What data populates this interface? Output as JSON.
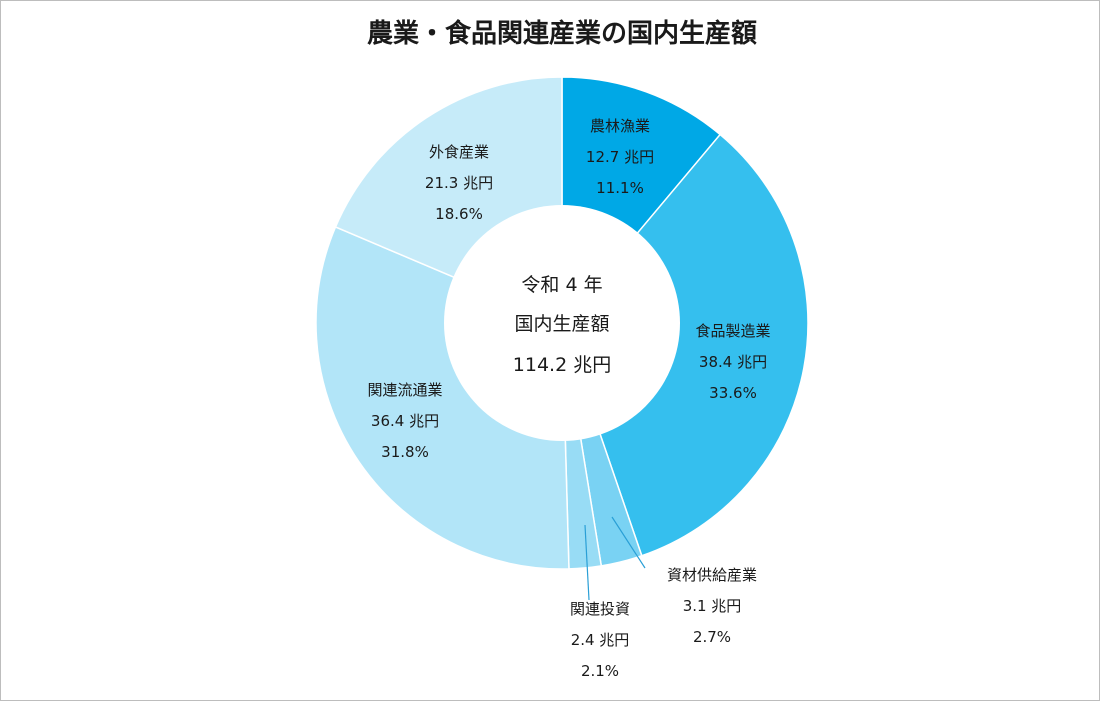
{
  "chart_data": {
    "type": "pie",
    "style": "donut",
    "title": "農業・食品関連産業の国内生産額",
    "center": {
      "line1": "令和 4 年",
      "line2": "国内生産額",
      "line3": "114.2 兆円"
    },
    "slices": [
      {
        "name": "農林漁業",
        "value": 12.7,
        "value_text": "12.7 兆円",
        "percent": 11.1,
        "percent_text": "11.1%",
        "color": "#00a8e6"
      },
      {
        "name": "食品製造業",
        "value": 38.4,
        "value_text": "38.4 兆円",
        "percent": 33.6,
        "percent_text": "33.6%",
        "color": "#35bfee"
      },
      {
        "name": "資材供給産業",
        "value": 3.1,
        "value_text": "3.1 兆円",
        "percent": 2.7,
        "percent_text": "2.7%",
        "color": "#79d2f3"
      },
      {
        "name": "関連投資",
        "value": 2.4,
        "value_text": "2.4 兆円",
        "percent": 2.1,
        "percent_text": "2.1%",
        "color": "#98dcf5"
      },
      {
        "name": "関連流通業",
        "value": 36.4,
        "value_text": "36.4 兆円",
        "percent": 31.8,
        "percent_text": "31.8%",
        "color": "#b2e5f8"
      },
      {
        "name": "外食産業",
        "value": 21.3,
        "value_text": "21.3 兆円",
        "percent": 18.6,
        "percent_text": "18.6%",
        "color": "#c6ebf9"
      }
    ]
  }
}
